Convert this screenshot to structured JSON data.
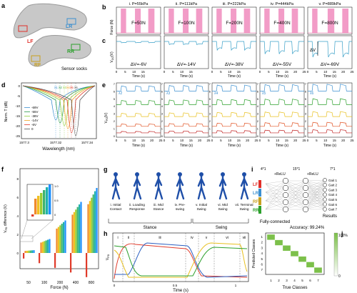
{
  "panels": {
    "a": {
      "label": "a",
      "socks": [
        "LR",
        "LF",
        "RR",
        "RF"
      ],
      "caption": "Sensor socks",
      "colors": {
        "LR": "#3b8fd0",
        "LF": "#e0302a",
        "RR": "#2ca02c",
        "RF": "#c8a020"
      }
    },
    "b": {
      "label": "b",
      "ylabel": "Force (N)",
      "subplots": [
        {
          "title": "i. P=55kPa",
          "force": "F=50N",
          "dv": "ΔV=-6V"
        },
        {
          "title": "ii. P=111kPa",
          "force": "F=100N",
          "dv": "ΔV=-14V"
        },
        {
          "title": "iii. P=222kPa",
          "force": "F=200N",
          "dv": "ΔV=-38V"
        },
        {
          "title": "iv. P=444kPa",
          "force": "F=400N",
          "dv": "ΔV=-55V"
        },
        {
          "title": "v. P=889kPa",
          "force": "F=800N",
          "dv": "ΔV=-69V"
        }
      ],
      "dv_symbol": "ΔV"
    },
    "c": {
      "label": "c",
      "ylabel": "V",
      "ylabel_sub": "OC",
      "ylabel_unit": "(V)",
      "xlabel": "Time (s)",
      "xticks": [
        "0",
        "5",
        "10",
        "15",
        "20",
        "25"
      ]
    },
    "d": {
      "label": "d",
      "ylabel": "Norm. T (dB)",
      "xlabel": "Wavelength (nm)",
      "xticks": [
        "1577.3",
        "1577.32",
        "1577.34"
      ],
      "yticks": [
        "0",
        "-5",
        "-10",
        "-15",
        "-20",
        "-25"
      ],
      "legend": [
        "-69V",
        "-55V",
        "-38V",
        "-14V",
        "-6V",
        "0"
      ],
      "legend_colors": [
        "#3b8fd0",
        "#2b9a4a",
        "#8fcf3a",
        "#f0a020",
        "#e03a2a",
        "#555555"
      ],
      "lambda_labels": [
        "λ1",
        "λ2",
        "λ3",
        "λ4",
        "λ5",
        "λ6"
      ]
    },
    "e": {
      "label": "e",
      "ylabel": "V",
      "ylabel_sub": "PD",
      "ylabel_unit": "(V)",
      "xlabel": "Time (s)",
      "xticks": [
        "0",
        "5",
        "10",
        "15",
        "20",
        "25"
      ],
      "lambdas": [
        "λ2",
        "λ3",
        "λ4",
        "λ5",
        "λ6"
      ],
      "ytick_sets": [
        [
          "7",
          "6",
          "5",
          "4",
          "3",
          "2",
          "1",
          "0"
        ]
      ],
      "trace_colors": [
        "#3b8fd0",
        "#2ca02c",
        "#e8c020",
        "#e05020",
        "#c02020"
      ]
    },
    "f": {
      "label": "f",
      "ylabel": "V",
      "ylabel_sub": "PD",
      "ylabel_tail": " difference (V)",
      "xlabel": "Force (N)",
      "categories": [
        "50",
        "100",
        "200",
        "400",
        "800"
      ],
      "yticks": [
        "8",
        "6",
        "4",
        "2",
        "0"
      ],
      "inset_yticks": [
        "1.0",
        "0.5",
        "0"
      ]
    },
    "g": {
      "label": "g",
      "phases": [
        "i. Initial\nContact",
        "ii. Loading\nResponse",
        "iii. Mid\nStance",
        "iv. Pre-\nswing",
        "v. Initial\nSwing",
        "vi. Mid\nSwing",
        "vii. Terminal\nSwing"
      ],
      "stance": "Stance",
      "swing": "Swing"
    },
    "h": {
      "label": "h",
      "ylabel": "V",
      "ylabel_sub": "PD",
      "xlabel": "Time (s)",
      "xticks": [
        "0",
        "0.5",
        "1"
      ],
      "roman": [
        "i",
        "ii",
        "iii",
        "iv",
        "v",
        "vi",
        "vii"
      ]
    },
    "i": {
      "label": "i",
      "input_size": "4*1",
      "hidden1": "+ReLU",
      "hidden2": "+ReLU",
      "hidden_size": "7*1",
      "output_size": "7*1",
      "inputs": [
        "LF",
        "LR",
        "RF",
        "RR"
      ],
      "outputs": [
        "Gait 1",
        "Gait 2",
        "Gait 3",
        "Gait 4",
        "Gait 5",
        "Gait 6",
        "Gait 7"
      ],
      "caption_left": "Fully-connected",
      "caption_right": "Results",
      "accuracy": "Accuracy: 99.24%",
      "size_mid": "15*1"
    },
    "j": {
      "label": "j",
      "ylabel": "Predicted Classes",
      "xlabel": "True Classes",
      "ticks": [
        "1",
        "2",
        "3",
        "4",
        "5",
        "6",
        "7"
      ],
      "cbar_top": "100%",
      "cbar_bottom": "0"
    }
  }
}
